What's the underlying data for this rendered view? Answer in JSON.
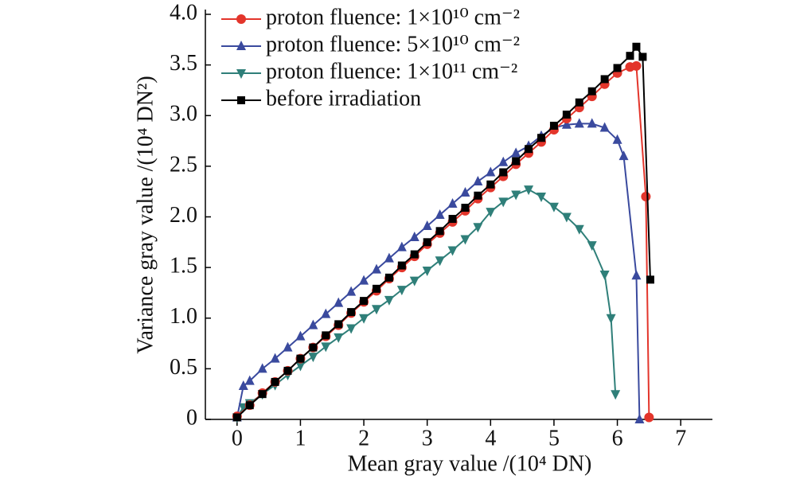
{
  "chart_data": {
    "type": "line",
    "xlabel": "Mean gray value /(10⁴ DN)",
    "ylabel": "Variance gray value /(10⁴ DN²)",
    "xlim": [
      -0.5,
      7.5
    ],
    "xticks": [
      0,
      1,
      2,
      3,
      4,
      5,
      6,
      7
    ],
    "ylim": [
      0,
      4
    ],
    "yticks": [
      0,
      0.5,
      {
        "value": 1,
        "label": "1.0"
      },
      1.5,
      {
        "value": 2,
        "label": "2.0"
      },
      2.5,
      {
        "value": 3,
        "label": "3.0"
      },
      3.5,
      {
        "value": 4,
        "label": "4.0"
      }
    ],
    "legend": "upper left",
    "series": [
      {
        "name": "proton fluence: 1×10¹⁰ cm⁻²",
        "color": "#e3352b",
        "marker": "circle",
        "x": [
          0,
          0.2,
          0.4,
          0.6,
          0.8,
          1.0,
          1.2,
          1.4,
          1.6,
          1.8,
          2.0,
          2.2,
          2.4,
          2.6,
          2.8,
          3.0,
          3.2,
          3.4,
          3.6,
          3.8,
          4.0,
          4.2,
          4.4,
          4.6,
          4.8,
          5.0,
          5.2,
          5.4,
          5.6,
          5.8,
          6.0,
          6.2,
          6.3,
          6.45,
          6.5
        ],
        "values": [
          0.03,
          0.14,
          0.26,
          0.37,
          0.48,
          0.6,
          0.71,
          0.82,
          0.93,
          1.05,
          1.16,
          1.27,
          1.39,
          1.5,
          1.61,
          1.73,
          1.84,
          1.95,
          2.06,
          2.18,
          2.29,
          2.4,
          2.52,
          2.63,
          2.74,
          2.86,
          2.97,
          3.08,
          3.19,
          3.31,
          3.42,
          3.48,
          3.49,
          2.2,
          0.02
        ]
      },
      {
        "name": "proton fluence: 5×10¹⁰ cm⁻²",
        "color": "#3a4a9e",
        "marker": "triangle-up",
        "x": [
          0,
          0.1,
          0.2,
          0.4,
          0.6,
          0.8,
          1.0,
          1.2,
          1.4,
          1.6,
          1.8,
          2.0,
          2.2,
          2.4,
          2.6,
          2.8,
          3.0,
          3.2,
          3.4,
          3.6,
          3.8,
          4.0,
          4.2,
          4.4,
          4.6,
          4.8,
          5.0,
          5.2,
          5.4,
          5.6,
          5.8,
          6.0,
          6.1,
          6.3,
          6.35
        ],
        "values": [
          0.02,
          0.33,
          0.38,
          0.5,
          0.6,
          0.71,
          0.82,
          0.93,
          1.04,
          1.15,
          1.26,
          1.37,
          1.48,
          1.59,
          1.7,
          1.8,
          1.91,
          2.02,
          2.13,
          2.24,
          2.35,
          2.44,
          2.54,
          2.63,
          2.7,
          2.8,
          2.88,
          2.91,
          2.92,
          2.92,
          2.88,
          2.76,
          2.6,
          1.42,
          0
        ]
      },
      {
        "name": "proton fluence: 1×10¹¹ cm⁻²",
        "color": "#2f7f79",
        "marker": "triangle-down",
        "x": [
          0,
          0.1,
          0.2,
          0.4,
          0.6,
          0.8,
          1.0,
          1.2,
          1.4,
          1.6,
          1.8,
          2.0,
          2.2,
          2.4,
          2.6,
          2.8,
          3.0,
          3.2,
          3.4,
          3.6,
          3.8,
          4.0,
          4.2,
          4.4,
          4.6,
          4.8,
          5.0,
          5.2,
          5.4,
          5.6,
          5.8,
          5.9,
          5.97
        ],
        "values": [
          0.02,
          0.12,
          0.16,
          0.25,
          0.34,
          0.44,
          0.53,
          0.62,
          0.72,
          0.81,
          0.9,
          1.0,
          1.09,
          1.18,
          1.28,
          1.37,
          1.47,
          1.57,
          1.67,
          1.78,
          1.9,
          2.05,
          2.15,
          2.22,
          2.27,
          2.2,
          2.1,
          2.0,
          1.88,
          1.72,
          1.43,
          1.0,
          0.25
        ]
      },
      {
        "name": "before irradiation",
        "color": "#000000",
        "marker": "square",
        "x": [
          0,
          0.2,
          0.4,
          0.6,
          0.8,
          1.0,
          1.2,
          1.4,
          1.6,
          1.8,
          2.0,
          2.2,
          2.4,
          2.6,
          2.8,
          3.0,
          3.2,
          3.4,
          3.6,
          3.8,
          4.0,
          4.2,
          4.4,
          4.6,
          4.8,
          5.0,
          5.2,
          5.4,
          5.6,
          5.8,
          6.0,
          6.2,
          6.3,
          6.4,
          6.52
        ],
        "values": [
          0.02,
          0.14,
          0.25,
          0.37,
          0.48,
          0.6,
          0.71,
          0.83,
          0.94,
          1.06,
          1.17,
          1.29,
          1.4,
          1.52,
          1.63,
          1.75,
          1.86,
          1.98,
          2.09,
          2.21,
          2.32,
          2.44,
          2.55,
          2.67,
          2.78,
          2.9,
          3.01,
          3.13,
          3.24,
          3.36,
          3.47,
          3.59,
          3.68,
          3.58,
          1.38
        ]
      }
    ]
  }
}
